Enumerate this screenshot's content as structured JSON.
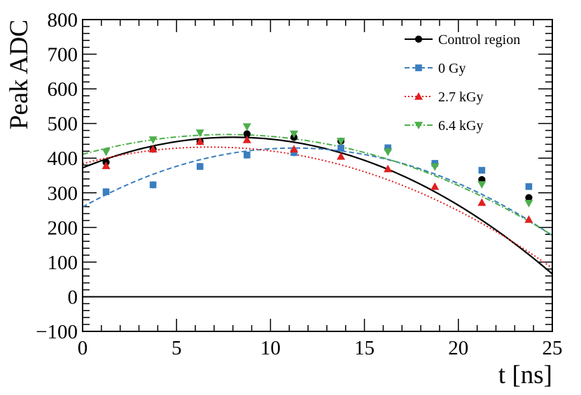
{
  "chart_data": {
    "type": "scatter",
    "title": "",
    "xlabel": "t [ns]",
    "ylabel": "Peak ADC",
    "xlim": [
      0,
      25
    ],
    "ylim": [
      -100,
      800
    ],
    "x_ticks": [
      0,
      5,
      10,
      15,
      20,
      25
    ],
    "y_ticks": [
      -100,
      0,
      100,
      200,
      300,
      400,
      500,
      600,
      700,
      800
    ],
    "x_tick_labels": [
      "0",
      "5",
      "10",
      "15",
      "20",
      "25"
    ],
    "y_tick_labels": [
      "−100",
      "0",
      "100",
      "200",
      "300",
      "400",
      "500",
      "600",
      "700",
      "800"
    ],
    "legend_position": "top-right",
    "reference_line_y": 0,
    "series": [
      {
        "name": "Control region",
        "color": "#000000",
        "marker": "circle",
        "line_style": "solid",
        "x": [
          1.25,
          3.75,
          6.25,
          8.75,
          11.25,
          13.75,
          16.25,
          18.75,
          21.25,
          23.75
        ],
        "values": [
          388,
          426,
          448,
          470,
          460,
          449,
          427,
          384,
          338,
          286
        ],
        "errors": [
          6,
          6,
          6,
          6,
          6,
          6,
          6,
          6,
          6,
          6
        ],
        "fit_coeffs": [
          372.0,
          22.0,
          -1.37
        ]
      },
      {
        "name": "0 Gy",
        "color": "#3a7ebf",
        "marker": "square",
        "line_style": "dashed",
        "x": [
          1.25,
          3.75,
          6.25,
          8.75,
          11.25,
          13.75,
          16.25,
          18.75,
          21.25,
          23.75
        ],
        "values": [
          303,
          323,
          376,
          409,
          416,
          429,
          430,
          385,
          365,
          318
        ],
        "errors": [
          10,
          10,
          10,
          10,
          10,
          6,
          6,
          6,
          6,
          6
        ],
        "fit_coeffs": [
          259.0,
          30.2,
          -1.34
        ]
      },
      {
        "name": "2.7 kGy",
        "color": "#e02020",
        "marker": "triangle-up",
        "line_style": "dotted",
        "x": [
          1.25,
          3.75,
          6.25,
          8.75,
          11.25,
          13.75,
          16.25,
          18.75,
          21.25,
          23.75
        ],
        "values": [
          378,
          426,
          448,
          453,
          426,
          405,
          369,
          318,
          272,
          223
        ],
        "errors": [
          6,
          6,
          6,
          6,
          6,
          6,
          6,
          6,
          6,
          6
        ],
        "fit_coeffs": [
          384.0,
          14.2,
          -1.05
        ]
      },
      {
        "name": "6.4 kGy",
        "color": "#4daf4a",
        "marker": "triangle-down",
        "line_style": "dashdot",
        "x": [
          1.25,
          3.75,
          6.25,
          8.75,
          11.25,
          13.75,
          16.25,
          18.75,
          21.25,
          23.75
        ],
        "values": [
          418,
          453,
          473,
          491,
          470,
          449,
          418,
          375,
          324,
          270
        ],
        "errors": [
          6,
          6,
          6,
          6,
          6,
          6,
          6,
          6,
          6,
          6
        ],
        "fit_coeffs": [
          411.0,
          14.9,
          -0.97
        ]
      }
    ]
  }
}
